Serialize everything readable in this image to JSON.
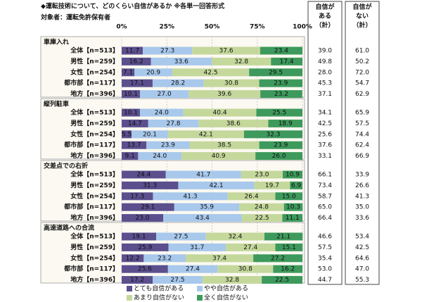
{
  "chart_data": {
    "type": "bar",
    "orientation": "horizontal",
    "stacked": true,
    "title": "◆運転技術について、どのくらい自信があるか ※各単一回答形式",
    "subtitle": "対象者：運転免許保有者",
    "xlim": [
      0,
      100
    ],
    "xticks": [
      {
        "value": 0,
        "label": "0%"
      },
      {
        "value": 25,
        "label": "25%"
      },
      {
        "value": 50,
        "label": "50%"
      },
      {
        "value": 75,
        "label": "75%"
      },
      {
        "value": 100,
        "label": "100%"
      }
    ],
    "groups": [
      {
        "title": "車庫入れ",
        "categories": [
          "全体【n=513】",
          "男性【n=259】",
          "女性【n=254】",
          "都市部【n=117】",
          "地方【n=396】"
        ]
      },
      {
        "title": "縦列駐車",
        "categories": [
          "全体【n=513】",
          "男性【n=259】",
          "女性【n=254】",
          "都市部【n=117】",
          "地方【n=396】"
        ]
      },
      {
        "title": "交差点での右折",
        "categories": [
          "全体【n=513】",
          "男性【n=259】",
          "女性【n=254】",
          "都市部【n=117】",
          "地方【n=396】"
        ]
      },
      {
        "title": "高速道路への合流",
        "categories": [
          "全体【n=513】",
          "男性【n=259】",
          "女性【n=254】",
          "都市部【n=117】",
          "地方【n=396】"
        ]
      }
    ],
    "series": [
      {
        "name": "とても自信がある",
        "color": "#5b4f8e",
        "values": [
          [
            11.7,
            16.2,
            7.1,
            17.1,
            10.1
          ],
          [
            10.1,
            14.7,
            5.5,
            13.7,
            9.1
          ],
          [
            24.4,
            31.3,
            17.3,
            29.1,
            23.0
          ],
          [
            19.1,
            25.9,
            12.2,
            25.6,
            17.2
          ]
        ],
        "value_labels": [
          [
            "11.7",
            "16.2",
            "7.1",
            "17.1",
            "10.1"
          ],
          [
            "10.1",
            "14.7",
            "5.5",
            "13.7",
            "9.1"
          ],
          [
            "24.4",
            "31.3",
            "17.3",
            "29.1",
            "23.0"
          ],
          [
            "19.1",
            "25.9",
            "12.2",
            "25.6",
            "17.2"
          ]
        ]
      },
      {
        "name": "やや自信がある",
        "color": "#a8c8ec",
        "values": [
          [
            27.3,
            33.6,
            20.9,
            28.2,
            27.0
          ],
          [
            24.0,
            27.8,
            20.1,
            23.9,
            24.0
          ],
          [
            41.7,
            42.1,
            41.3,
            35.9,
            43.4
          ],
          [
            27.5,
            31.7,
            23.2,
            27.4,
            27.5
          ]
        ],
        "value_labels": [
          [
            "27.3",
            "33.6",
            "20.9",
            "28.2",
            "27.0"
          ],
          [
            "24.0",
            "27.8",
            "20.1",
            "23.9",
            "24.0"
          ],
          [
            "41.7",
            "42.1",
            "41.3",
            "35.9",
            "43.4"
          ],
          [
            "27.5",
            "31.7",
            "23.2",
            "27.4",
            "27.5"
          ]
        ]
      },
      {
        "name": "あまり自信がない",
        "color": "#c5d89c",
        "values": [
          [
            37.6,
            32.8,
            42.5,
            30.8,
            39.6
          ],
          [
            40.4,
            38.6,
            42.1,
            38.5,
            40.9
          ],
          [
            23.0,
            19.7,
            26.4,
            24.8,
            22.5
          ],
          [
            32.4,
            27.4,
            37.4,
            30.8,
            32.8
          ]
        ],
        "value_labels": [
          [
            "37.6",
            "32.8",
            "42.5",
            "30.8",
            "39.6"
          ],
          [
            "40.4",
            "38.6",
            "42.1",
            "38.5",
            "40.9"
          ],
          [
            "23.0",
            "19.7",
            "26.4",
            "24.8",
            "22.5"
          ],
          [
            "32.4",
            "27.4",
            "37.4",
            "30.8",
            "32.8"
          ]
        ]
      },
      {
        "name": "全く自信がない",
        "color": "#3d9a5c",
        "values": [
          [
            23.4,
            17.4,
            29.5,
            23.9,
            23.2
          ],
          [
            25.5,
            18.9,
            32.3,
            23.9,
            26.0
          ],
          [
            10.9,
            6.9,
            15.0,
            10.3,
            11.1
          ],
          [
            21.1,
            15.1,
            27.2,
            16.2,
            22.5
          ]
        ],
        "value_labels": [
          [
            "23.4",
            "17.4",
            "29.5",
            "23.9",
            "23.2"
          ],
          [
            "25.5",
            "18.9",
            "32.3",
            "23.9",
            "26.0"
          ],
          [
            "10.9",
            "6.9",
            "15.0",
            "10.3",
            "11.1"
          ],
          [
            "21.1",
            "15.1",
            "27.2",
            "16.2",
            "22.5"
          ]
        ]
      }
    ],
    "columns": [
      {
        "header": [
          "自信が",
          "ある",
          "（計）"
        ],
        "values": [
          [
            "39.0",
            "49.8",
            "28.0",
            "45.3",
            "37.1"
          ],
          [
            "34.1",
            "42.5",
            "25.6",
            "37.6",
            "33.1"
          ],
          [
            "66.1",
            "73.4",
            "58.7",
            "65.0",
            "66.4"
          ],
          [
            "46.6",
            "57.5",
            "35.4",
            "53.0",
            "44.7"
          ]
        ]
      },
      {
        "header": [
          "自信が",
          "ない",
          "（計）"
        ],
        "values": [
          [
            "61.0",
            "50.2",
            "72.0",
            "54.7",
            "62.9"
          ],
          [
            "65.9",
            "57.5",
            "74.4",
            "62.4",
            "66.9"
          ],
          [
            "33.9",
            "26.6",
            "41.3",
            "35.0",
            "33.6"
          ],
          [
            "53.4",
            "42.5",
            "64.6",
            "47.0",
            "55.3"
          ]
        ]
      }
    ]
  }
}
